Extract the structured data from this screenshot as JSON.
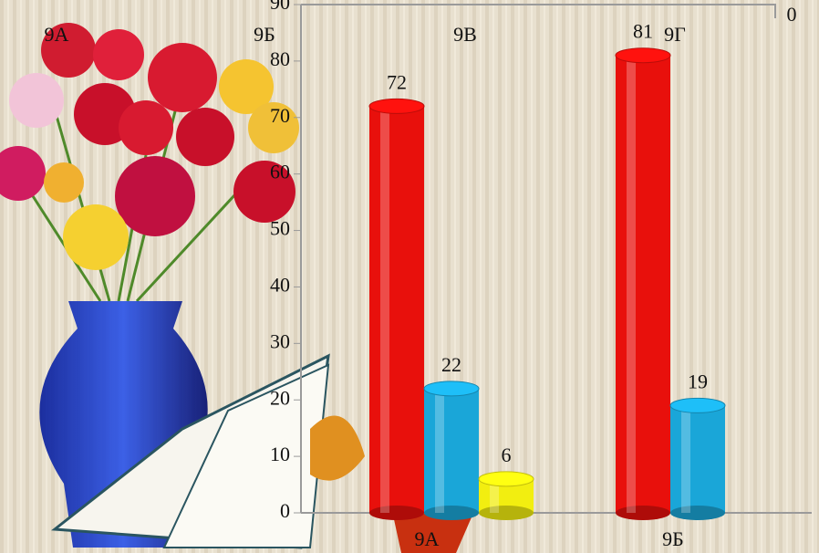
{
  "chart_data": {
    "type": "bar",
    "categories": [
      "9А",
      "9Б"
    ],
    "series": [
      {
        "color": "#e8100c",
        "values": [
          72,
          81
        ]
      },
      {
        "color": "#1aa6d8",
        "values": [
          22,
          19
        ]
      },
      {
        "color": "#f2ee10",
        "values": [
          6,
          null
        ]
      }
    ],
    "depth_labels": [
      "9А",
      "9Б",
      "9В",
      "9Г"
    ],
    "corner_label": "0",
    "ylim": [
      0,
      90
    ],
    "yticks": [
      0,
      10,
      20,
      30,
      40,
      50,
      60,
      70,
      80,
      90
    ]
  }
}
